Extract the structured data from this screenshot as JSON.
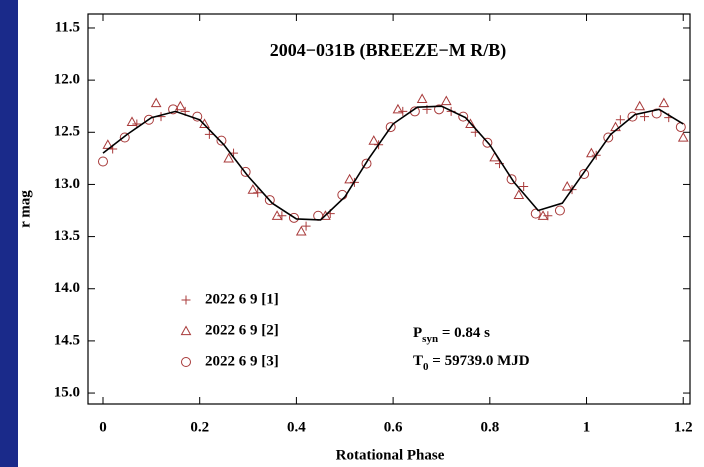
{
  "chart_data": {
    "type": "scatter",
    "title": "2004−031B (BREEZE−M R/B)",
    "x_label": "Rotational Phase",
    "y_label": "r mag",
    "xlim": [
      -0.031,
      1.214
    ],
    "ylim": [
      11.366,
      15.105
    ],
    "invert_y": true,
    "xticks": [
      0,
      0.2,
      0.4,
      0.6,
      0.8,
      1,
      1.2
    ],
    "yticks": [
      11.5,
      {
        "value": 12,
        "label": "12.0"
      },
      12.5,
      {
        "value": 13,
        "label": "13.0"
      },
      13.5,
      {
        "value": 14,
        "label": "14.0"
      },
      14.5,
      {
        "value": 15,
        "label": "15.0"
      }
    ],
    "legend": "lower left",
    "series": [
      {
        "name": "2022 6 9 [1]",
        "marker": "plus",
        "color": "#a83a3a",
        "x": [
          0.02,
          0.07,
          0.12,
          0.17,
          0.22,
          0.27,
          0.32,
          0.37,
          0.42,
          0.47,
          0.52,
          0.57,
          0.62,
          0.67,
          0.72,
          0.77,
          0.82,
          0.87,
          0.92,
          0.97,
          1.02,
          1.07,
          1.12,
          1.17
        ],
        "values": [
          12.66,
          12.42,
          12.35,
          12.3,
          12.52,
          12.7,
          13.08,
          13.3,
          13.4,
          13.28,
          12.98,
          12.62,
          12.3,
          12.28,
          12.3,
          12.5,
          12.8,
          13.02,
          13.3,
          13.05,
          12.72,
          12.38,
          12.35,
          12.36
        ]
      },
      {
        "name": "2022 6 9 [2]",
        "marker": "triangle",
        "color": "#a83a3a",
        "x": [
          0.01,
          0.06,
          0.11,
          0.16,
          0.21,
          0.26,
          0.31,
          0.36,
          0.41,
          0.46,
          0.51,
          0.56,
          0.61,
          0.66,
          0.71,
          0.76,
          0.81,
          0.86,
          0.91,
          0.96,
          1.01,
          1.06,
          1.11,
          1.16,
          1.2
        ],
        "values": [
          12.62,
          12.4,
          12.22,
          12.25,
          12.42,
          12.75,
          13.05,
          13.3,
          13.45,
          13.3,
          12.95,
          12.58,
          12.28,
          12.18,
          12.2,
          12.42,
          12.74,
          13.1,
          13.3,
          13.02,
          12.7,
          12.45,
          12.25,
          12.22,
          12.55
        ]
      },
      {
        "name": "2022 6 9 [3]",
        "marker": "circle",
        "color": "#a83a3a",
        "x": [
          0.0,
          0.045,
          0.095,
          0.145,
          0.195,
          0.245,
          0.295,
          0.345,
          0.395,
          0.445,
          0.495,
          0.545,
          0.595,
          0.645,
          0.695,
          0.745,
          0.795,
          0.845,
          0.895,
          0.945,
          0.995,
          1.045,
          1.095,
          1.145,
          1.195
        ],
        "values": [
          12.78,
          12.55,
          12.38,
          12.28,
          12.35,
          12.58,
          12.88,
          13.15,
          13.32,
          13.3,
          13.1,
          12.8,
          12.45,
          12.3,
          12.28,
          12.35,
          12.6,
          12.95,
          13.28,
          13.25,
          12.9,
          12.55,
          12.35,
          12.32,
          12.45
        ]
      }
    ],
    "fit": {
      "color": "#000000",
      "x": [
        0,
        0.05,
        0.1,
        0.15,
        0.2,
        0.25,
        0.3,
        0.35,
        0.4,
        0.45,
        0.5,
        0.55,
        0.6,
        0.65,
        0.7,
        0.75,
        0.8,
        0.85,
        0.9,
        0.95,
        1.0,
        1.05,
        1.1,
        1.15,
        1.2
      ],
      "values": [
        12.7,
        12.52,
        12.36,
        12.3,
        12.38,
        12.62,
        12.92,
        13.18,
        13.33,
        13.34,
        13.12,
        12.75,
        12.42,
        12.26,
        12.25,
        12.36,
        12.62,
        12.98,
        13.25,
        13.18,
        12.85,
        12.52,
        12.33,
        12.28,
        12.42
      ]
    },
    "annotations": [
      {
        "main": "P",
        "sub": "syn",
        "rest": " = 0.84 s"
      },
      {
        "main": "T",
        "sub": "0",
        "rest": " = 59739.0 MJD"
      }
    ]
  }
}
